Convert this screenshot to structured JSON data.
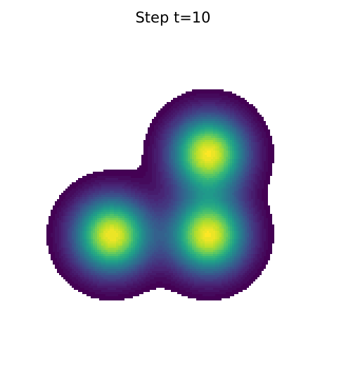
{
  "chart_data": {
    "type": "heatmap",
    "subtype": "filled-contour",
    "title": "Step t=10",
    "xlabel": "",
    "ylabel": "",
    "axes_visible": false,
    "grid": false,
    "colormap": "viridis",
    "colormap_stops": [
      "#440154",
      "#482878",
      "#3e4989",
      "#31688e",
      "#26828e",
      "#1f9e89",
      "#35b779",
      "#6ece58",
      "#b5de2b",
      "#fde725"
    ],
    "peaks": [
      {
        "name": "upper-right",
        "x": 0.62,
        "y": 0.62,
        "amplitude": 1.0
      },
      {
        "name": "lower-left",
        "x": 0.3,
        "y": 0.35,
        "amplitude": 1.0
      },
      {
        "name": "lower-right",
        "x": 0.62,
        "y": 0.35,
        "amplitude": 1.0
      }
    ],
    "xlim": [
      0,
      1
    ],
    "ylim": [
      0,
      1
    ],
    "contour_levels": 40,
    "min_visible_level": 0.04
  }
}
